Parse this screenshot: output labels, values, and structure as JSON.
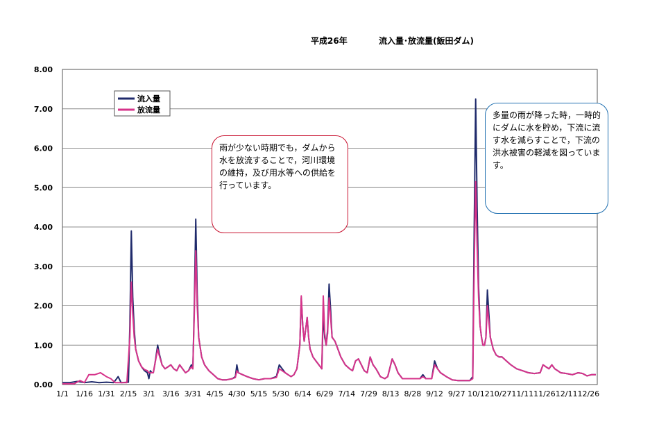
{
  "chart_data": {
    "type": "line",
    "title_year": "平成26年",
    "title": "流入量･放流量(飯田ダム)",
    "xlabel": "",
    "ylabel": "",
    "ylim": [
      0,
      8
    ],
    "y_ticks": [
      "0.00",
      "1.00",
      "2.00",
      "3.00",
      "4.00",
      "5.00",
      "6.00",
      "7.00",
      "8.00"
    ],
    "x_range": [
      0,
      365
    ],
    "x_tick_labels": [
      "1/1",
      "1/16",
      "1/31",
      "2/15",
      "3/1",
      "3/16",
      "3/31",
      "4/15",
      "4/30",
      "5/15",
      "5/30",
      "6/14",
      "6/29",
      "7/14",
      "7/29",
      "8/13",
      "8/28",
      "9/12",
      "9/27",
      "10/12",
      "10/27",
      "11/11",
      "11/26",
      "12/11",
      "12/26"
    ],
    "x_tick_days": [
      0,
      15,
      30,
      45,
      59,
      74,
      89,
      104,
      119,
      134,
      149,
      164,
      179,
      194,
      209,
      224,
      239,
      254,
      269,
      284,
      299,
      314,
      329,
      344,
      359
    ],
    "grid": true,
    "legend": "top-left",
    "series": [
      {
        "name": "流入量",
        "color": "#1f2a6b",
        "points": [
          [
            0,
            0.05
          ],
          [
            5,
            0.05
          ],
          [
            10,
            0.08
          ],
          [
            15,
            0.05
          ],
          [
            20,
            0.07
          ],
          [
            25,
            0.05
          ],
          [
            30,
            0.06
          ],
          [
            35,
            0.05
          ],
          [
            38,
            0.2
          ],
          [
            40,
            0.05
          ],
          [
            45,
            0.06
          ],
          [
            46,
            1.5
          ],
          [
            47,
            3.9
          ],
          [
            48,
            2.2
          ],
          [
            49,
            1.4
          ],
          [
            50,
            0.9
          ],
          [
            52,
            0.6
          ],
          [
            54,
            0.45
          ],
          [
            56,
            0.35
          ],
          [
            58,
            0.3
          ],
          [
            59,
            0.15
          ],
          [
            60,
            0.35
          ],
          [
            61,
            0.3
          ],
          [
            62,
            0.3
          ],
          [
            63,
            0.5
          ],
          [
            65,
            1.0
          ],
          [
            66,
            0.8
          ],
          [
            68,
            0.5
          ],
          [
            70,
            0.4
          ],
          [
            72,
            0.45
          ],
          [
            74,
            0.5
          ],
          [
            76,
            0.4
          ],
          [
            78,
            0.35
          ],
          [
            80,
            0.5
          ],
          [
            82,
            0.4
          ],
          [
            84,
            0.3
          ],
          [
            86,
            0.35
          ],
          [
            88,
            0.5
          ],
          [
            89,
            0.4
          ],
          [
            90,
            2.0
          ],
          [
            91,
            4.2
          ],
          [
            92,
            2.3
          ],
          [
            93,
            1.2
          ],
          [
            95,
            0.7
          ],
          [
            97,
            0.5
          ],
          [
            100,
            0.35
          ],
          [
            103,
            0.25
          ],
          [
            106,
            0.15
          ],
          [
            109,
            0.12
          ],
          [
            112,
            0.12
          ],
          [
            116,
            0.15
          ],
          [
            118,
            0.2
          ],
          [
            119,
            0.5
          ],
          [
            120,
            0.3
          ],
          [
            123,
            0.25
          ],
          [
            126,
            0.2
          ],
          [
            130,
            0.15
          ],
          [
            134,
            0.12
          ],
          [
            138,
            0.15
          ],
          [
            142,
            0.15
          ],
          [
            146,
            0.2
          ],
          [
            148,
            0.5
          ],
          [
            150,
            0.4
          ],
          [
            152,
            0.3
          ],
          [
            154,
            0.25
          ],
          [
            156,
            0.2
          ],
          [
            158,
            0.25
          ],
          [
            160,
            0.4
          ],
          [
            162,
            1.0
          ],
          [
            163,
            2.2
          ],
          [
            164,
            1.5
          ],
          [
            165,
            1.1
          ],
          [
            166,
            1.4
          ],
          [
            167,
            1.7
          ],
          [
            168,
            1.2
          ],
          [
            169,
            0.9
          ],
          [
            171,
            0.7
          ],
          [
            173,
            0.6
          ],
          [
            175,
            0.5
          ],
          [
            177,
            0.4
          ],
          [
            178,
            1.8
          ],
          [
            179,
            1.2
          ],
          [
            180,
            1.0
          ],
          [
            181,
            1.4
          ],
          [
            182,
            2.55
          ],
          [
            183,
            1.9
          ],
          [
            184,
            1.2
          ],
          [
            186,
            1.1
          ],
          [
            188,
            0.9
          ],
          [
            190,
            0.7
          ],
          [
            193,
            0.5
          ],
          [
            196,
            0.4
          ],
          [
            198,
            0.35
          ],
          [
            200,
            0.6
          ],
          [
            202,
            0.65
          ],
          [
            204,
            0.5
          ],
          [
            206,
            0.35
          ],
          [
            208,
            0.3
          ],
          [
            210,
            0.7
          ],
          [
            212,
            0.5
          ],
          [
            214,
            0.4
          ],
          [
            217,
            0.2
          ],
          [
            220,
            0.15
          ],
          [
            222,
            0.2
          ],
          [
            225,
            0.65
          ],
          [
            227,
            0.5
          ],
          [
            229,
            0.3
          ],
          [
            232,
            0.15
          ],
          [
            236,
            0.15
          ],
          [
            240,
            0.15
          ],
          [
            244,
            0.15
          ],
          [
            246,
            0.25
          ],
          [
            248,
            0.15
          ],
          [
            252,
            0.15
          ],
          [
            254,
            0.6
          ],
          [
            256,
            0.4
          ],
          [
            258,
            0.3
          ],
          [
            262,
            0.2
          ],
          [
            266,
            0.12
          ],
          [
            270,
            0.1
          ],
          [
            274,
            0.1
          ],
          [
            278,
            0.1
          ],
          [
            280,
            0.2
          ],
          [
            281,
            4.0
          ],
          [
            282,
            7.25
          ],
          [
            283,
            4.5
          ],
          [
            284,
            2.5
          ],
          [
            285,
            1.5
          ],
          [
            286,
            1.2
          ],
          [
            287,
            1.0
          ],
          [
            288,
            1.0
          ],
          [
            289,
            1.2
          ],
          [
            290,
            2.4
          ],
          [
            291,
            1.8
          ],
          [
            292,
            1.2
          ],
          [
            294,
            0.9
          ],
          [
            296,
            0.75
          ],
          [
            298,
            0.7
          ],
          [
            300,
            0.7
          ],
          [
            303,
            0.6
          ],
          [
            306,
            0.5
          ],
          [
            310,
            0.4
          ],
          [
            314,
            0.35
          ],
          [
            318,
            0.3
          ],
          [
            322,
            0.28
          ],
          [
            326,
            0.3
          ],
          [
            328,
            0.5
          ],
          [
            330,
            0.45
          ],
          [
            332,
            0.4
          ],
          [
            334,
            0.5
          ],
          [
            336,
            0.4
          ],
          [
            338,
            0.35
          ],
          [
            340,
            0.3
          ],
          [
            344,
            0.28
          ],
          [
            348,
            0.25
          ],
          [
            352,
            0.3
          ],
          [
            355,
            0.28
          ],
          [
            358,
            0.22
          ],
          [
            361,
            0.25
          ],
          [
            364,
            0.25
          ]
        ]
      },
      {
        "name": "放流量",
        "color": "#d6338a",
        "points": [
          [
            0,
            0.02
          ],
          [
            8,
            0.02
          ],
          [
            12,
            0.1
          ],
          [
            15,
            0.05
          ],
          [
            18,
            0.25
          ],
          [
            22,
            0.25
          ],
          [
            26,
            0.3
          ],
          [
            30,
            0.2
          ],
          [
            33,
            0.15
          ],
          [
            36,
            0.05
          ],
          [
            44,
            0.05
          ],
          [
            46,
            1.2
          ],
          [
            47,
            2.6
          ],
          [
            48,
            1.8
          ],
          [
            49,
            1.2
          ],
          [
            50,
            0.9
          ],
          [
            52,
            0.6
          ],
          [
            54,
            0.45
          ],
          [
            56,
            0.38
          ],
          [
            58,
            0.35
          ],
          [
            59,
            0.3
          ],
          [
            60,
            0.3
          ],
          [
            62,
            0.3
          ],
          [
            63,
            0.5
          ],
          [
            65,
            0.9
          ],
          [
            66,
            0.75
          ],
          [
            68,
            0.5
          ],
          [
            70,
            0.4
          ],
          [
            72,
            0.45
          ],
          [
            74,
            0.5
          ],
          [
            76,
            0.4
          ],
          [
            78,
            0.35
          ],
          [
            80,
            0.5
          ],
          [
            82,
            0.4
          ],
          [
            84,
            0.3
          ],
          [
            86,
            0.35
          ],
          [
            88,
            0.45
          ],
          [
            89,
            0.4
          ],
          [
            90,
            1.8
          ],
          [
            91,
            3.4
          ],
          [
            92,
            2.0
          ],
          [
            93,
            1.2
          ],
          [
            95,
            0.7
          ],
          [
            97,
            0.5
          ],
          [
            100,
            0.35
          ],
          [
            103,
            0.25
          ],
          [
            106,
            0.15
          ],
          [
            109,
            0.12
          ],
          [
            112,
            0.12
          ],
          [
            116,
            0.15
          ],
          [
            118,
            0.18
          ],
          [
            119,
            0.35
          ],
          [
            120,
            0.3
          ],
          [
            123,
            0.25
          ],
          [
            126,
            0.2
          ],
          [
            130,
            0.15
          ],
          [
            134,
            0.12
          ],
          [
            138,
            0.15
          ],
          [
            142,
            0.15
          ],
          [
            146,
            0.18
          ],
          [
            148,
            0.4
          ],
          [
            150,
            0.35
          ],
          [
            152,
            0.3
          ],
          [
            154,
            0.25
          ],
          [
            156,
            0.2
          ],
          [
            158,
            0.25
          ],
          [
            160,
            0.4
          ],
          [
            162,
            1.0
          ],
          [
            163,
            2.25
          ],
          [
            164,
            1.5
          ],
          [
            165,
            1.1
          ],
          [
            166,
            1.4
          ],
          [
            167,
            1.7
          ],
          [
            168,
            1.2
          ],
          [
            169,
            0.9
          ],
          [
            171,
            0.7
          ],
          [
            173,
            0.6
          ],
          [
            175,
            0.5
          ],
          [
            177,
            0.4
          ],
          [
            178,
            2.25
          ],
          [
            179,
            1.3
          ],
          [
            180,
            1.0
          ],
          [
            181,
            1.3
          ],
          [
            182,
            2.2
          ],
          [
            183,
            1.7
          ],
          [
            184,
            1.2
          ],
          [
            186,
            1.1
          ],
          [
            188,
            0.9
          ],
          [
            190,
            0.7
          ],
          [
            193,
            0.5
          ],
          [
            196,
            0.4
          ],
          [
            198,
            0.35
          ],
          [
            200,
            0.6
          ],
          [
            202,
            0.65
          ],
          [
            204,
            0.5
          ],
          [
            206,
            0.35
          ],
          [
            208,
            0.3
          ],
          [
            210,
            0.7
          ],
          [
            212,
            0.5
          ],
          [
            214,
            0.4
          ],
          [
            217,
            0.2
          ],
          [
            220,
            0.15
          ],
          [
            222,
            0.2
          ],
          [
            225,
            0.65
          ],
          [
            227,
            0.5
          ],
          [
            229,
            0.3
          ],
          [
            232,
            0.15
          ],
          [
            236,
            0.15
          ],
          [
            240,
            0.15
          ],
          [
            244,
            0.15
          ],
          [
            246,
            0.2
          ],
          [
            248,
            0.15
          ],
          [
            252,
            0.15
          ],
          [
            254,
            0.5
          ],
          [
            256,
            0.4
          ],
          [
            258,
            0.3
          ],
          [
            262,
            0.2
          ],
          [
            266,
            0.12
          ],
          [
            270,
            0.1
          ],
          [
            274,
            0.1
          ],
          [
            278,
            0.1
          ],
          [
            280,
            0.15
          ],
          [
            281,
            3.0
          ],
          [
            282,
            5.15
          ],
          [
            283,
            3.5
          ],
          [
            284,
            2.2
          ],
          [
            285,
            1.5
          ],
          [
            286,
            1.2
          ],
          [
            287,
            1.0
          ],
          [
            288,
            1.0
          ],
          [
            289,
            1.2
          ],
          [
            290,
            2.0
          ],
          [
            291,
            1.6
          ],
          [
            292,
            1.2
          ],
          [
            294,
            0.9
          ],
          [
            296,
            0.75
          ],
          [
            298,
            0.7
          ],
          [
            300,
            0.7
          ],
          [
            303,
            0.6
          ],
          [
            306,
            0.5
          ],
          [
            310,
            0.4
          ],
          [
            314,
            0.35
          ],
          [
            318,
            0.3
          ],
          [
            322,
            0.28
          ],
          [
            326,
            0.3
          ],
          [
            328,
            0.5
          ],
          [
            330,
            0.45
          ],
          [
            332,
            0.4
          ],
          [
            334,
            0.5
          ],
          [
            336,
            0.4
          ],
          [
            338,
            0.35
          ],
          [
            340,
            0.3
          ],
          [
            344,
            0.28
          ],
          [
            348,
            0.25
          ],
          [
            352,
            0.3
          ],
          [
            355,
            0.28
          ],
          [
            358,
            0.22
          ],
          [
            361,
            0.25
          ],
          [
            364,
            0.25
          ]
        ]
      }
    ],
    "annotations": [
      "雨が少ない時期でも，ダムから水を放流することで，河川環境の維持，及び用水等への供給を行っています。",
      "多量の雨が降った時，一時的にダムに水を貯め，下流に流す水を減らすことで，下流の洪水被害の軽減を図っています。"
    ]
  }
}
